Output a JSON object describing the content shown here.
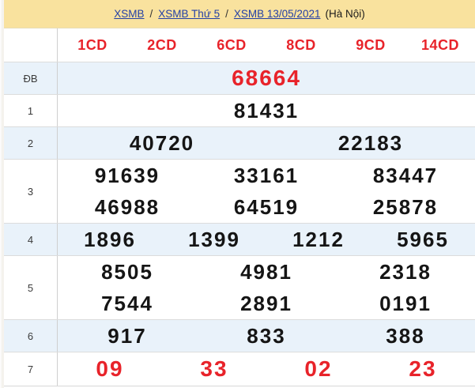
{
  "colors": {
    "band_yellow": "#f9e29e",
    "row_blue": "#e9f2fa",
    "accent_red": "#e8232a",
    "link_blue": "#2440a6"
  },
  "breadcrumb": {
    "separator": "/",
    "links": [
      {
        "label": "XSMB"
      },
      {
        "label": "XSMB Thứ 5"
      },
      {
        "label": "XSMB 13/05/2021"
      }
    ],
    "suffix": "(Hà Nội)"
  },
  "header": {
    "cd_labels": [
      "1CD",
      "2CD",
      "6CD",
      "8CD",
      "9CD",
      "14CD"
    ]
  },
  "results": {
    "rows": [
      {
        "label": "ĐB",
        "red": true,
        "shade": "blue",
        "lines": [
          [
            "68664"
          ]
        ]
      },
      {
        "label": "1",
        "red": false,
        "shade": "white",
        "lines": [
          [
            "81431"
          ]
        ]
      },
      {
        "label": "2",
        "red": false,
        "shade": "blue",
        "lines": [
          [
            "40720",
            "22183"
          ]
        ]
      },
      {
        "label": "3",
        "red": false,
        "shade": "white",
        "lines": [
          [
            "91639",
            "33161",
            "83447"
          ],
          [
            "46988",
            "64519",
            "25878"
          ]
        ]
      },
      {
        "label": "4",
        "red": false,
        "shade": "blue",
        "lines": [
          [
            "1896",
            "1399",
            "1212",
            "5965"
          ]
        ]
      },
      {
        "label": "5",
        "red": false,
        "shade": "white",
        "lines": [
          [
            "8505",
            "4981",
            "2318"
          ],
          [
            "7544",
            "2891",
            "0191"
          ]
        ]
      },
      {
        "label": "6",
        "red": false,
        "shade": "blue",
        "lines": [
          [
            "917",
            "833",
            "388"
          ]
        ]
      },
      {
        "label": "7",
        "red": true,
        "shade": "white",
        "lines": [
          [
            "09",
            "33",
            "02",
            "23"
          ]
        ]
      }
    ]
  }
}
